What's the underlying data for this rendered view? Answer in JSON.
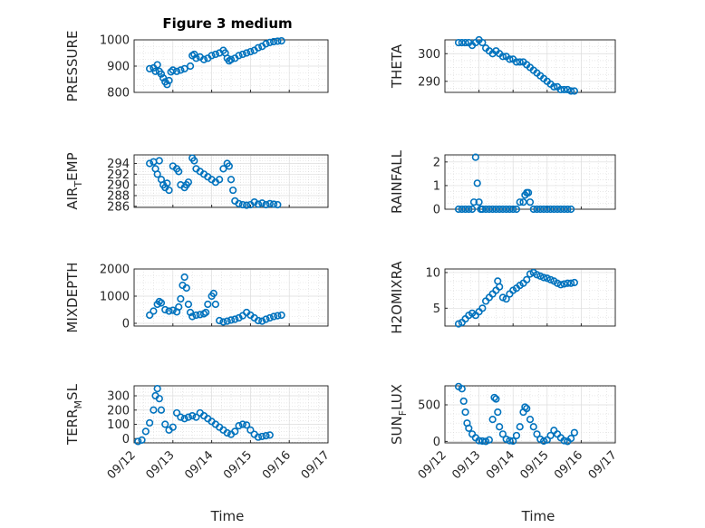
{
  "figure": {
    "title": "Figure 3 medium",
    "marker_color": "#0072bd",
    "xlabel": "Time"
  },
  "chart_data": [
    {
      "type": "scatter",
      "ylabel": "PRESSURE",
      "ylim": [
        800,
        1000
      ],
      "yticks": [
        "800",
        "900",
        "1000"
      ],
      "yticks_val": [
        800,
        900,
        1000
      ],
      "xlim": [
        0,
        5
      ],
      "xticks": [
        "09/12",
        "09/13",
        "09/14",
        "09/15",
        "09/16",
        "09/17"
      ],
      "show_xticks": false,
      "points": [
        [
          0.4,
          890
        ],
        [
          0.5,
          893
        ],
        [
          0.55,
          880
        ],
        [
          0.6,
          905
        ],
        [
          0.65,
          880
        ],
        [
          0.7,
          870
        ],
        [
          0.75,
          855
        ],
        [
          0.8,
          840
        ],
        [
          0.85,
          830
        ],
        [
          0.9,
          845
        ],
        [
          0.95,
          878
        ],
        [
          1.0,
          885
        ],
        [
          1.1,
          880
        ],
        [
          1.2,
          885
        ],
        [
          1.3,
          890
        ],
        [
          1.45,
          900
        ],
        [
          1.5,
          940
        ],
        [
          1.55,
          945
        ],
        [
          1.6,
          930
        ],
        [
          1.7,
          935
        ],
        [
          1.8,
          925
        ],
        [
          1.9,
          930
        ],
        [
          2.0,
          940
        ],
        [
          2.1,
          945
        ],
        [
          2.2,
          950
        ],
        [
          2.3,
          960
        ],
        [
          2.35,
          950
        ],
        [
          2.4,
          930
        ],
        [
          2.45,
          920
        ],
        [
          2.5,
          925
        ],
        [
          2.6,
          930
        ],
        [
          2.7,
          940
        ],
        [
          2.8,
          945
        ],
        [
          2.9,
          950
        ],
        [
          3.0,
          955
        ],
        [
          3.1,
          960
        ],
        [
          3.2,
          970
        ],
        [
          3.3,
          975
        ],
        [
          3.4,
          985
        ],
        [
          3.5,
          990
        ],
        [
          3.6,
          993
        ],
        [
          3.7,
          995
        ],
        [
          3.8,
          996
        ]
      ]
    },
    {
      "type": "scatter",
      "ylabel": "THETA",
      "ylim": [
        286,
        305
      ],
      "yticks": [
        "290",
        "300"
      ],
      "yticks_val": [
        290,
        300
      ],
      "xlim": [
        0,
        5
      ],
      "xticks": [
        "09/12",
        "09/13",
        "09/14",
        "09/15",
        "09/16",
        "09/17"
      ],
      "show_xticks": false,
      "points": [
        [
          0.4,
          304
        ],
        [
          0.5,
          304
        ],
        [
          0.6,
          304
        ],
        [
          0.7,
          304
        ],
        [
          0.8,
          303
        ],
        [
          0.9,
          304
        ],
        [
          1.0,
          305
        ],
        [
          1.1,
          304
        ],
        [
          1.2,
          302
        ],
        [
          1.3,
          301
        ],
        [
          1.4,
          300
        ],
        [
          1.5,
          301
        ],
        [
          1.6,
          300
        ],
        [
          1.7,
          299
        ],
        [
          1.8,
          299
        ],
        [
          1.9,
          298
        ],
        [
          2.0,
          298
        ],
        [
          2.1,
          297
        ],
        [
          2.2,
          297
        ],
        [
          2.3,
          297
        ],
        [
          2.4,
          296
        ],
        [
          2.5,
          295
        ],
        [
          2.6,
          294
        ],
        [
          2.7,
          293
        ],
        [
          2.8,
          292
        ],
        [
          2.9,
          291
        ],
        [
          3.0,
          290
        ],
        [
          3.1,
          289
        ],
        [
          3.2,
          288
        ],
        [
          3.3,
          288
        ],
        [
          3.4,
          287
        ],
        [
          3.5,
          287
        ],
        [
          3.6,
          287
        ],
        [
          3.7,
          286.5
        ],
        [
          3.8,
          286.5
        ]
      ]
    },
    {
      "type": "scatter",
      "ylabel": "AIR_TEMP",
      "ylim": [
        285.8,
        295.6
      ],
      "yticks": [
        "286",
        "288",
        "290",
        "292",
        "294"
      ],
      "yticks_val": [
        286,
        288,
        290,
        292,
        294
      ],
      "xlim": [
        0,
        5
      ],
      "xticks": [
        "09/12",
        "09/13",
        "09/14",
        "09/15",
        "09/16",
        "09/17"
      ],
      "show_xticks": false,
      "points": [
        [
          0.4,
          294
        ],
        [
          0.5,
          294.3
        ],
        [
          0.55,
          293
        ],
        [
          0.6,
          292
        ],
        [
          0.65,
          294.5
        ],
        [
          0.7,
          291
        ],
        [
          0.75,
          290
        ],
        [
          0.8,
          289.5
        ],
        [
          0.85,
          290.3
        ],
        [
          0.9,
          289
        ],
        [
          1.0,
          293.5
        ],
        [
          1.1,
          293
        ],
        [
          1.15,
          292.5
        ],
        [
          1.2,
          290
        ],
        [
          1.3,
          289.5
        ],
        [
          1.35,
          290
        ],
        [
          1.4,
          290.5
        ],
        [
          1.5,
          295
        ],
        [
          1.55,
          294.5
        ],
        [
          1.6,
          293
        ],
        [
          1.7,
          292.5
        ],
        [
          1.8,
          292
        ],
        [
          1.9,
          291.5
        ],
        [
          2.0,
          291
        ],
        [
          2.1,
          290.5
        ],
        [
          2.2,
          291
        ],
        [
          2.3,
          293
        ],
        [
          2.4,
          294
        ],
        [
          2.45,
          293.5
        ],
        [
          2.5,
          291
        ],
        [
          2.55,
          289
        ],
        [
          2.6,
          287
        ],
        [
          2.7,
          286.5
        ],
        [
          2.8,
          286.3
        ],
        [
          2.9,
          286.2
        ],
        [
          3.0,
          286.3
        ],
        [
          3.1,
          286.8
        ],
        [
          3.2,
          286.4
        ],
        [
          3.3,
          286.6
        ],
        [
          3.4,
          286.3
        ],
        [
          3.5,
          286.5
        ],
        [
          3.6,
          286.4
        ],
        [
          3.7,
          286.3
        ]
      ]
    },
    {
      "type": "scatter",
      "ylabel": "RAINFALL",
      "ylim": [
        0,
        2.3
      ],
      "yticks": [
        "0",
        "1",
        "2"
      ],
      "yticks_val": [
        0,
        1,
        2
      ],
      "xlim": [
        0,
        5
      ],
      "xticks": [
        "09/12",
        "09/13",
        "09/14",
        "09/15",
        "09/16",
        "09/17"
      ],
      "show_xticks": false,
      "points": [
        [
          0.4,
          0
        ],
        [
          0.5,
          0
        ],
        [
          0.6,
          0
        ],
        [
          0.7,
          0
        ],
        [
          0.8,
          0
        ],
        [
          0.85,
          0.3
        ],
        [
          0.9,
          2.2
        ],
        [
          0.95,
          1.1
        ],
        [
          1.0,
          0.3
        ],
        [
          1.05,
          0
        ],
        [
          1.1,
          0
        ],
        [
          1.2,
          0
        ],
        [
          1.3,
          0
        ],
        [
          1.4,
          0
        ],
        [
          1.5,
          0
        ],
        [
          1.6,
          0
        ],
        [
          1.7,
          0
        ],
        [
          1.8,
          0
        ],
        [
          1.9,
          0
        ],
        [
          2.0,
          0
        ],
        [
          2.1,
          0
        ],
        [
          2.2,
          0.3
        ],
        [
          2.3,
          0.3
        ],
        [
          2.35,
          0.6
        ],
        [
          2.4,
          0.7
        ],
        [
          2.45,
          0.7
        ],
        [
          2.5,
          0.3
        ],
        [
          2.6,
          0
        ],
        [
          2.7,
          0
        ],
        [
          2.8,
          0
        ],
        [
          2.9,
          0
        ],
        [
          3.0,
          0
        ],
        [
          3.1,
          0
        ],
        [
          3.2,
          0
        ],
        [
          3.3,
          0
        ],
        [
          3.4,
          0
        ],
        [
          3.5,
          0
        ],
        [
          3.6,
          0
        ],
        [
          3.7,
          0
        ]
      ]
    },
    {
      "type": "scatter",
      "ylabel": "MIXDEPTH",
      "ylim": [
        -100,
        2000
      ],
      "yticks": [
        "0",
        "1000",
        "2000"
      ],
      "yticks_val": [
        0,
        1000,
        2000
      ],
      "xlim": [
        0,
        5
      ],
      "xticks": [
        "09/12",
        "09/13",
        "09/14",
        "09/15",
        "09/16",
        "09/17"
      ],
      "show_xticks": false,
      "points": [
        [
          0.4,
          300
        ],
        [
          0.5,
          450
        ],
        [
          0.6,
          700
        ],
        [
          0.65,
          800
        ],
        [
          0.7,
          750
        ],
        [
          0.8,
          500
        ],
        [
          0.9,
          450
        ],
        [
          1.0,
          480
        ],
        [
          1.1,
          420
        ],
        [
          1.15,
          600
        ],
        [
          1.2,
          900
        ],
        [
          1.25,
          1400
        ],
        [
          1.3,
          1700
        ],
        [
          1.35,
          1300
        ],
        [
          1.4,
          700
        ],
        [
          1.45,
          400
        ],
        [
          1.5,
          250
        ],
        [
          1.6,
          300
        ],
        [
          1.7,
          320
        ],
        [
          1.8,
          350
        ],
        [
          1.85,
          400
        ],
        [
          1.9,
          700
        ],
        [
          2.0,
          1000
        ],
        [
          2.05,
          1100
        ],
        [
          2.1,
          700
        ],
        [
          2.2,
          100
        ],
        [
          2.3,
          50
        ],
        [
          2.4,
          80
        ],
        [
          2.5,
          120
        ],
        [
          2.6,
          150
        ],
        [
          2.7,
          200
        ],
        [
          2.8,
          280
        ],
        [
          2.9,
          400
        ],
        [
          3.0,
          300
        ],
        [
          3.1,
          200
        ],
        [
          3.2,
          100
        ],
        [
          3.3,
          80
        ],
        [
          3.4,
          150
        ],
        [
          3.5,
          200
        ],
        [
          3.6,
          250
        ],
        [
          3.7,
          280
        ],
        [
          3.8,
          300
        ]
      ]
    },
    {
      "type": "scatter",
      "ylabel": "H2OMIXRA",
      "ylim": [
        2.5,
        10.5
      ],
      "yticks": [
        "5",
        "10"
      ],
      "yticks_val": [
        5,
        10
      ],
      "xlim": [
        0,
        5
      ],
      "xticks": [
        "09/12",
        "09/13",
        "09/14",
        "09/15",
        "09/16",
        "09/17"
      ],
      "show_xticks": false,
      "points": [
        [
          0.4,
          2.8
        ],
        [
          0.5,
          3.0
        ],
        [
          0.6,
          3.5
        ],
        [
          0.7,
          4.0
        ],
        [
          0.8,
          4.3
        ],
        [
          0.9,
          4.0
        ],
        [
          1.0,
          4.5
        ],
        [
          1.1,
          5.0
        ],
        [
          1.2,
          6.0
        ],
        [
          1.3,
          6.5
        ],
        [
          1.4,
          7.0
        ],
        [
          1.5,
          7.5
        ],
        [
          1.55,
          8.8
        ],
        [
          1.6,
          8.0
        ],
        [
          1.7,
          6.5
        ],
        [
          1.8,
          6.3
        ],
        [
          1.9,
          7.0
        ],
        [
          2.0,
          7.5
        ],
        [
          2.1,
          7.8
        ],
        [
          2.2,
          8.2
        ],
        [
          2.3,
          8.5
        ],
        [
          2.4,
          9.0
        ],
        [
          2.5,
          9.8
        ],
        [
          2.6,
          10.0
        ],
        [
          2.7,
          9.7
        ],
        [
          2.8,
          9.5
        ],
        [
          2.9,
          9.3
        ],
        [
          3.0,
          9.2
        ],
        [
          3.1,
          9.0
        ],
        [
          3.2,
          8.8
        ],
        [
          3.3,
          8.5
        ],
        [
          3.4,
          8.3
        ],
        [
          3.5,
          8.4
        ],
        [
          3.6,
          8.5
        ],
        [
          3.7,
          8.5
        ],
        [
          3.8,
          8.6
        ]
      ]
    },
    {
      "type": "scatter",
      "ylabel": "TERR_MSL",
      "ylim": [
        -30,
        370
      ],
      "yticks": [
        "0",
        "100",
        "200",
        "300"
      ],
      "yticks_val": [
        0,
        100,
        200,
        300
      ],
      "xlim": [
        0,
        5
      ],
      "xticks": [
        "09/12",
        "09/13",
        "09/14",
        "09/15",
        "09/16",
        "09/17"
      ],
      "show_xticks": true,
      "points": [
        [
          0.1,
          -20
        ],
        [
          0.2,
          -10
        ],
        [
          0.3,
          50
        ],
        [
          0.4,
          110
        ],
        [
          0.5,
          200
        ],
        [
          0.55,
          300
        ],
        [
          0.6,
          350
        ],
        [
          0.65,
          280
        ],
        [
          0.7,
          200
        ],
        [
          0.8,
          100
        ],
        [
          0.9,
          60
        ],
        [
          1.0,
          80
        ],
        [
          1.1,
          180
        ],
        [
          1.2,
          150
        ],
        [
          1.3,
          140
        ],
        [
          1.4,
          150
        ],
        [
          1.5,
          160
        ],
        [
          1.6,
          150
        ],
        [
          1.7,
          180
        ],
        [
          1.8,
          160
        ],
        [
          1.9,
          140
        ],
        [
          2.0,
          120
        ],
        [
          2.1,
          100
        ],
        [
          2.2,
          80
        ],
        [
          2.3,
          60
        ],
        [
          2.4,
          40
        ],
        [
          2.5,
          30
        ],
        [
          2.6,
          50
        ],
        [
          2.7,
          90
        ],
        [
          2.8,
          100
        ],
        [
          2.9,
          95
        ],
        [
          3.0,
          60
        ],
        [
          3.1,
          30
        ],
        [
          3.2,
          10
        ],
        [
          3.3,
          15
        ],
        [
          3.4,
          20
        ],
        [
          3.5,
          25
        ]
      ]
    },
    {
      "type": "scatter",
      "ylabel": "SUN_FLUX",
      "ylim": [
        -20,
        760
      ],
      "yticks": [
        "0",
        "500"
      ],
      "yticks_val": [
        0,
        500
      ],
      "xlim": [
        0,
        5
      ],
      "xticks": [
        "09/12",
        "09/13",
        "09/14",
        "09/15",
        "09/16",
        "09/17"
      ],
      "show_xticks": true,
      "points": [
        [
          0.4,
          750
        ],
        [
          0.5,
          720
        ],
        [
          0.55,
          550
        ],
        [
          0.6,
          400
        ],
        [
          0.65,
          250
        ],
        [
          0.7,
          180
        ],
        [
          0.8,
          100
        ],
        [
          0.9,
          50
        ],
        [
          1.0,
          10
        ],
        [
          1.1,
          5
        ],
        [
          1.2,
          0
        ],
        [
          1.3,
          20
        ],
        [
          1.4,
          300
        ],
        [
          1.45,
          600
        ],
        [
          1.5,
          580
        ],
        [
          1.55,
          400
        ],
        [
          1.6,
          200
        ],
        [
          1.7,
          100
        ],
        [
          1.8,
          30
        ],
        [
          1.9,
          10
        ],
        [
          2.0,
          5
        ],
        [
          2.1,
          80
        ],
        [
          2.2,
          200
        ],
        [
          2.3,
          400
        ],
        [
          2.35,
          470
        ],
        [
          2.4,
          450
        ],
        [
          2.5,
          300
        ],
        [
          2.6,
          200
        ],
        [
          2.7,
          100
        ],
        [
          2.8,
          30
        ],
        [
          2.9,
          5
        ],
        [
          3.0,
          20
        ],
        [
          3.1,
          80
        ],
        [
          3.2,
          150
        ],
        [
          3.3,
          100
        ],
        [
          3.4,
          50
        ],
        [
          3.5,
          10
        ],
        [
          3.6,
          0
        ],
        [
          3.7,
          40
        ],
        [
          3.8,
          120
        ]
      ]
    }
  ]
}
